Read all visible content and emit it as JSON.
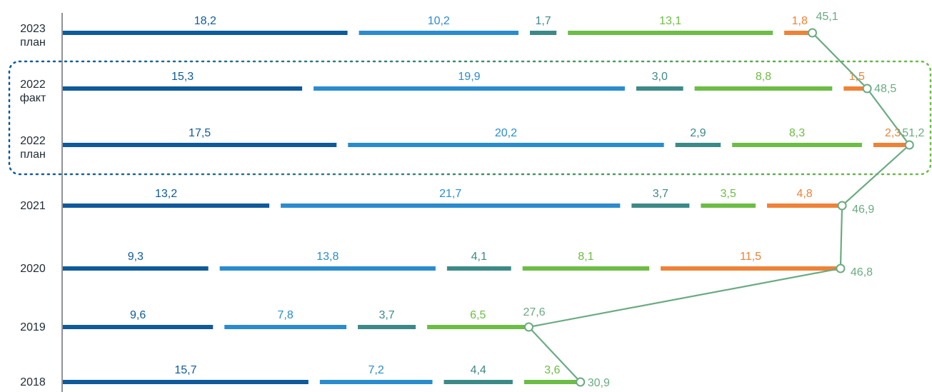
{
  "chart_data": {
    "type": "bar",
    "stacked": true,
    "orientation": "horizontal",
    "categories": [
      [
        "2023",
        "план"
      ],
      [
        "2022",
        "факт"
      ],
      [
        "2022",
        "план"
      ],
      [
        "2021"
      ],
      [
        "2020"
      ],
      [
        "2019"
      ],
      [
        "2018"
      ]
    ],
    "segment_colors": [
      "#0e5a9b",
      "#2a8ccf",
      "#3c8a88",
      "#6cbd45",
      "#ef8237"
    ],
    "total_line_color": "#6aab82",
    "highlight_group": {
      "categories": [
        1,
        2
      ],
      "border_style": "dotted",
      "border_color_start": "#0e5a9b",
      "border_color_end": "#6cbd45"
    },
    "rows": [
      {
        "values": [
          18.2,
          10.2,
          1.7,
          13.1,
          1.8
        ],
        "labels": [
          "18,2",
          "10,2",
          "1,7",
          "13,1",
          "1,8"
        ],
        "total": 45.1,
        "total_label": "45,1"
      },
      {
        "values": [
          15.3,
          19.9,
          3.0,
          8.8,
          1.5
        ],
        "labels": [
          "15,3",
          "19,9",
          "3,0",
          "8,8",
          "1,5"
        ],
        "total": 48.5,
        "total_label": "48,5"
      },
      {
        "values": [
          17.5,
          20.2,
          2.9,
          8.3,
          2.3
        ],
        "labels": [
          "17,5",
          "20,2",
          "2,9",
          "8,3",
          "2,3"
        ],
        "total": 51.2,
        "total_label": "51,2"
      },
      {
        "values": [
          13.2,
          21.7,
          3.7,
          3.5,
          4.8
        ],
        "labels": [
          "13,2",
          "21,7",
          "3,7",
          "3,5",
          "4,8"
        ],
        "total": 46.9,
        "total_label": "46,9"
      },
      {
        "values": [
          9.3,
          13.8,
          4.1,
          8.1,
          11.5
        ],
        "labels": [
          "9,3",
          "13,8",
          "4,1",
          "8,1",
          "11,5"
        ],
        "total": 46.8,
        "total_label": "46,8"
      },
      {
        "values": [
          9.6,
          7.8,
          3.7,
          6.5,
          0
        ],
        "labels": [
          "9,6",
          "7,8",
          "3,7",
          "6,5",
          ""
        ],
        "total": 27.6,
        "total_label": "27,6"
      },
      {
        "values": [
          15.7,
          7.2,
          4.4,
          3.6,
          0
        ],
        "labels": [
          "15,7",
          "7,2",
          "4,4",
          "3,6",
          ""
        ],
        "total": 30.9,
        "total_label": "30,9"
      }
    ],
    "title": "",
    "xlabel": "",
    "ylabel": "",
    "grid": false,
    "legend": "none"
  }
}
